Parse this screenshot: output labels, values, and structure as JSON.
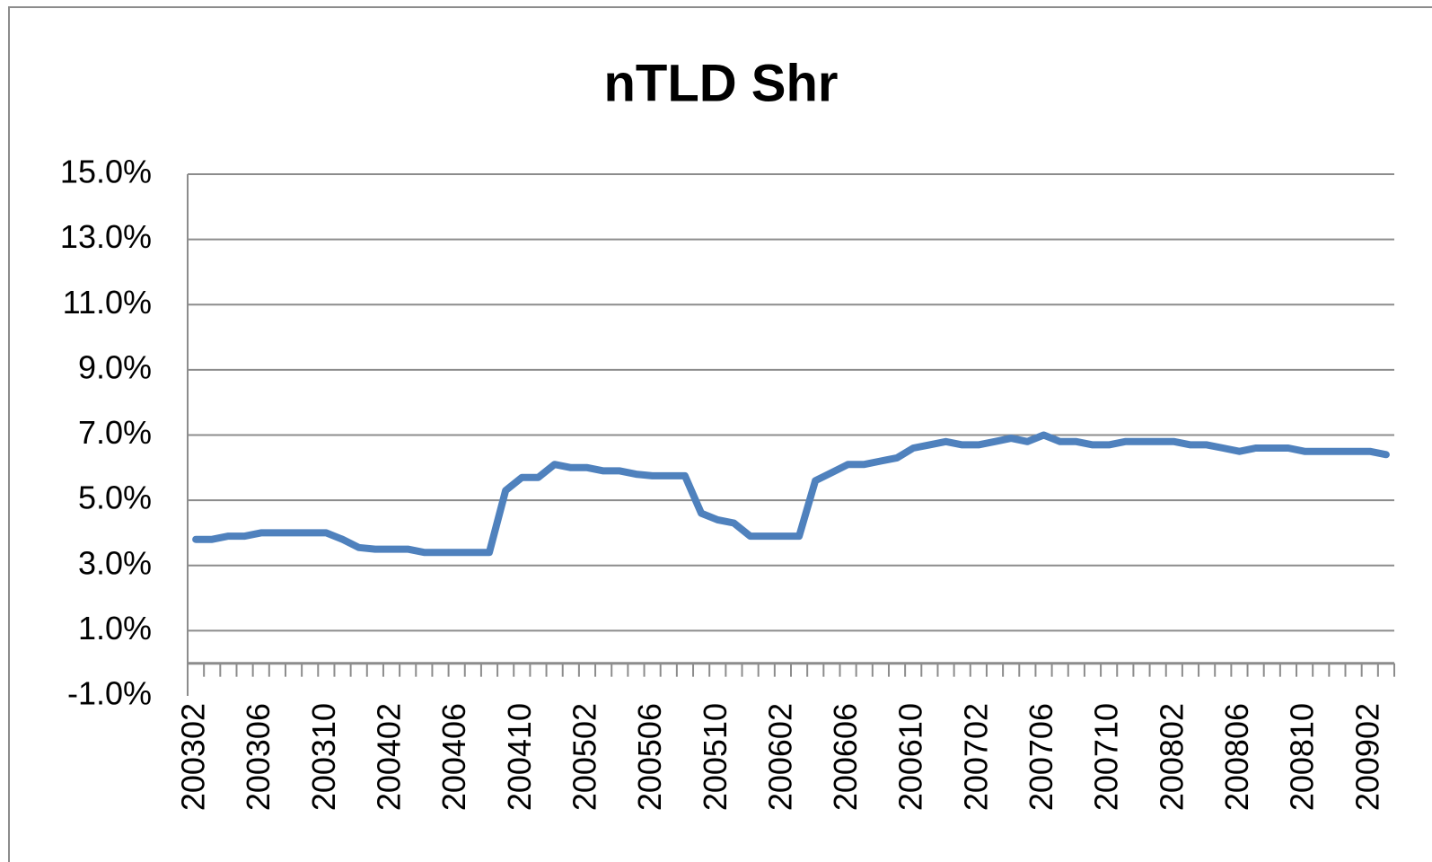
{
  "chart_data": {
    "type": "line",
    "title": "nTLD Shr",
    "categories": [
      "200302",
      null,
      null,
      null,
      "200306",
      null,
      null,
      null,
      "200310",
      null,
      null,
      null,
      "200402",
      null,
      null,
      null,
      "200406",
      null,
      null,
      null,
      "200410",
      null,
      null,
      null,
      "200502",
      null,
      null,
      null,
      "200506",
      null,
      null,
      null,
      "200510",
      null,
      null,
      null,
      "200602",
      null,
      null,
      null,
      "200606",
      null,
      null,
      null,
      "200610",
      null,
      null,
      null,
      "200702",
      null,
      null,
      null,
      "200706",
      null,
      null,
      null,
      "200710",
      null,
      null,
      null,
      "200802",
      null,
      null,
      null,
      "200806",
      null,
      null,
      null,
      "200810",
      null,
      null,
      null,
      "200902",
      null
    ],
    "values": [
      3.8,
      3.8,
      3.9,
      3.9,
      4.0,
      4.0,
      4.0,
      4.0,
      4.0,
      3.8,
      3.55,
      3.5,
      3.5,
      3.5,
      3.4,
      3.4,
      3.4,
      3.4,
      3.4,
      5.3,
      5.7,
      5.7,
      6.1,
      6.0,
      6.0,
      5.9,
      5.9,
      5.8,
      5.75,
      5.75,
      5.75,
      4.6,
      4.4,
      4.3,
      3.9,
      3.9,
      3.9,
      3.9,
      5.6,
      5.85,
      6.1,
      6.1,
      6.2,
      6.3,
      6.6,
      6.7,
      6.8,
      6.7,
      6.7,
      6.8,
      6.9,
      6.8,
      7.0,
      6.8,
      6.8,
      6.7,
      6.7,
      6.8,
      6.8,
      6.8,
      6.8,
      6.7,
      6.7,
      6.6,
      6.5,
      6.6,
      6.6,
      6.6,
      6.5,
      6.5,
      6.5,
      6.5,
      6.5,
      6.4
    ],
    "color": "#4f81bd",
    "ylim": [
      -1,
      15
    ],
    "yticks": [
      {
        "value": -1,
        "label": "-1.0%"
      },
      {
        "value": 1,
        "label": "1.0%"
      },
      {
        "value": 3,
        "label": "3.0%"
      },
      {
        "value": 5,
        "label": "5.0%"
      },
      {
        "value": 7,
        "label": "7.0%"
      },
      {
        "value": 9,
        "label": "9.0%"
      },
      {
        "value": 11,
        "label": "11.0%"
      },
      {
        "value": 13,
        "label": "13.0%"
      },
      {
        "value": 15,
        "label": "15.0%"
      }
    ],
    "grid": true
  }
}
